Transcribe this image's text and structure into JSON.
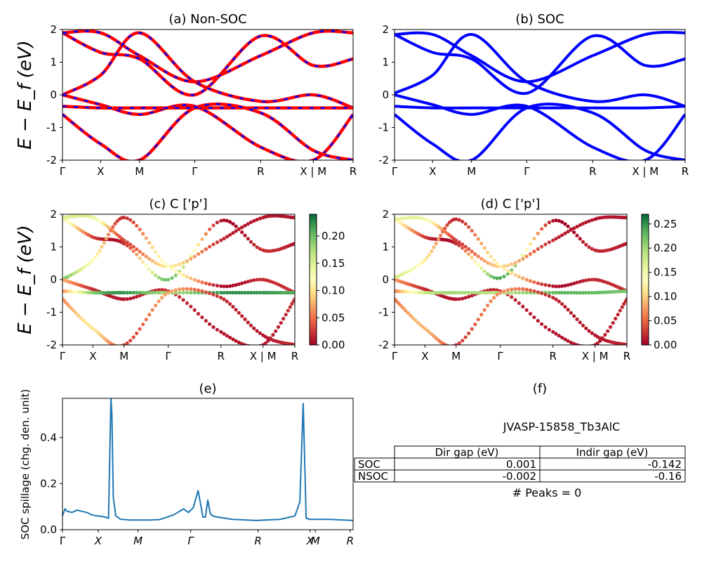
{
  "figure": {
    "panel_titles": {
      "a": "(a) Non-SOC",
      "b": "(b) SOC",
      "c": "(c)  C ['p']",
      "d": "(d) C ['p']",
      "e": "(e)",
      "f": "(f)"
    },
    "ylabel_band": "E − E_f (eV)",
    "ylabel_spillage": "SOC spillage (chg. den. unit)",
    "kpath_labels": [
      "Γ",
      "X",
      "M",
      "Γ",
      "R",
      "X | M",
      "R"
    ],
    "kpath_labels_e": [
      "Γ",
      "X",
      "M",
      "Γ",
      "R",
      "X",
      "M",
      "R"
    ],
    "colorbar_c_ticks": [
      "0.00",
      "0.05",
      "0.10",
      "0.15",
      "0.20"
    ],
    "colorbar_d_ticks": [
      "0.00",
      "0.05",
      "0.10",
      "0.15",
      "0.20",
      "0.25"
    ],
    "colors": {
      "nonsoc_line": "#ff0000",
      "nonsoc_dash": "#0000ff",
      "soc_line": "#0000ff",
      "spillage_line": "#1f77b4",
      "colormap": "RdYlGn"
    }
  },
  "info": {
    "material": "JVASP-15858_Tb3AlC",
    "table": {
      "col_headers": [
        "Dir gap (eV)",
        "Indir gap (eV)"
      ],
      "rows": [
        {
          "label": "SOC",
          "dir": "0.001",
          "indir": "-0.142"
        },
        {
          "label": "NSOC",
          "dir": "-0.002",
          "indir": "-0.16"
        }
      ]
    },
    "peaks": "# Peaks = 0"
  },
  "chart_data": [
    {
      "type": "line",
      "title": "(a) Non-SOC",
      "ylabel": "E − E_f (eV)",
      "ylim": [
        -2,
        2
      ],
      "yticks": [
        -2,
        -1,
        0,
        1,
        2
      ],
      "xticks": [
        "Γ",
        "X",
        "M",
        "Γ",
        "R",
        "X | M",
        "R"
      ],
      "series": [
        {
          "x": [
            0,
            1,
            2,
            3,
            4,
            5,
            6
          ],
          "values": [
            1.9,
            1.3,
            1.1,
            0.0,
            1.8,
            0.9,
            1.1
          ]
        },
        {
          "x": [
            0,
            1,
            2,
            3,
            4,
            5,
            6
          ],
          "values": [
            1.9,
            1.9,
            1.2,
            0.4,
            1.2,
            1.9,
            1.9
          ]
        },
        {
          "x": [
            0,
            1,
            2,
            3,
            4,
            5,
            6
          ],
          "values": [
            0.0,
            0.6,
            1.9,
            0.4,
            -0.2,
            0.0,
            -0.4
          ]
        },
        {
          "x": [
            0,
            1,
            2,
            3,
            4,
            5,
            6
          ],
          "values": [
            0.0,
            -0.3,
            -0.6,
            -0.35,
            -1.6,
            -2.0,
            -0.6
          ]
        },
        {
          "x": [
            0,
            1,
            2,
            3,
            4,
            5,
            6
          ],
          "values": [
            -0.35,
            -0.4,
            -0.4,
            -0.4,
            -0.4,
            -0.4,
            -0.4
          ]
        },
        {
          "x": [
            0,
            1,
            2,
            3,
            4,
            5,
            6
          ],
          "values": [
            -0.6,
            -1.5,
            -2.0,
            -0.4,
            -0.55,
            -1.7,
            -2.0
          ]
        }
      ]
    },
    {
      "type": "line",
      "title": "(b) SOC",
      "ylim": [
        -2,
        2
      ],
      "yticks": [
        -2,
        -1,
        0,
        1,
        2
      ],
      "xticks": [
        "Γ",
        "X",
        "M",
        "Γ",
        "R",
        "X | M",
        "R"
      ],
      "series": [
        {
          "x": [
            0,
            1,
            2,
            3,
            4,
            5,
            6
          ],
          "values": [
            1.85,
            1.3,
            1.1,
            0.05,
            1.8,
            0.9,
            1.1
          ]
        },
        {
          "x": [
            0,
            1,
            2,
            3,
            4,
            5,
            6
          ],
          "values": [
            1.85,
            1.85,
            1.2,
            0.4,
            1.2,
            1.85,
            1.9
          ]
        },
        {
          "x": [
            0,
            1,
            2,
            3,
            4,
            5,
            6
          ],
          "values": [
            0.05,
            0.6,
            1.85,
            0.4,
            -0.2,
            0.0,
            -0.35
          ]
        },
        {
          "x": [
            0,
            1,
            2,
            3,
            4,
            5,
            6
          ],
          "values": [
            0.0,
            -0.3,
            -0.6,
            -0.35,
            -1.6,
            -2.0,
            -0.6
          ]
        },
        {
          "x": [
            0,
            1,
            2,
            3,
            4,
            5,
            6
          ],
          "values": [
            -0.35,
            -0.4,
            -0.4,
            -0.4,
            -0.4,
            -0.4,
            -0.35
          ]
        },
        {
          "x": [
            0,
            1,
            2,
            3,
            4,
            5,
            6
          ],
          "values": [
            -0.6,
            -1.5,
            -2.0,
            -0.4,
            -0.55,
            -1.7,
            -2.0
          ]
        }
      ]
    },
    {
      "type": "scatter",
      "title": "(c)  C ['p']",
      "ylabel": "E − E_f (eV)",
      "ylim": [
        -2,
        2
      ],
      "yticks": [
        -2,
        -1,
        0,
        1,
        2
      ],
      "xticks": [
        "Γ",
        "X",
        "M",
        "Γ",
        "R",
        "X | M",
        "R"
      ],
      "colorbar": {
        "min": 0.0,
        "max": 0.24,
        "ticks": [
          0.0,
          0.05,
          0.1,
          0.15,
          0.2
        ]
      },
      "bands": [
        {
          "x": [
            0,
            1,
            2,
            3,
            4,
            5,
            6
          ],
          "values": [
            1.9,
            1.3,
            1.1,
            0.0,
            1.8,
            0.9,
            1.1
          ],
          "weight": [
            0.15,
            0.03,
            0.02,
            0.2,
            0.01,
            0.02,
            0.01
          ]
        },
        {
          "x": [
            0,
            1,
            2,
            3,
            4,
            5,
            6
          ],
          "values": [
            1.9,
            1.9,
            1.2,
            0.4,
            1.2,
            1.9,
            1.9
          ],
          "weight": [
            0.15,
            0.14,
            0.03,
            0.1,
            0.02,
            0.01,
            0.01
          ]
        },
        {
          "x": [
            0,
            1,
            2,
            3,
            4,
            5,
            6
          ],
          "values": [
            0.0,
            0.6,
            1.9,
            0.4,
            -0.2,
            0.0,
            -0.4
          ],
          "weight": [
            0.2,
            0.12,
            0.02,
            0.12,
            0.01,
            0.02,
            0.02
          ]
        },
        {
          "x": [
            0,
            1,
            2,
            3,
            4,
            5,
            6
          ],
          "values": [
            0.0,
            -0.3,
            -0.6,
            -0.35,
            -1.6,
            -2.0,
            -0.6
          ],
          "weight": [
            0.08,
            0.02,
            0.01,
            0.02,
            0.01,
            0.01,
            0.02
          ]
        },
        {
          "x": [
            0,
            1,
            2,
            3,
            4,
            5,
            6
          ],
          "values": [
            -0.35,
            -0.4,
            -0.4,
            -0.4,
            -0.4,
            -0.4,
            -0.4
          ],
          "weight": [
            0.06,
            0.19,
            0.22,
            0.18,
            0.22,
            0.22,
            0.21
          ]
        },
        {
          "x": [
            0,
            1,
            2,
            3,
            4,
            5,
            6
          ],
          "values": [
            -0.6,
            -1.5,
            -2.0,
            -0.4,
            -0.55,
            -1.7,
            -2.0
          ],
          "weight": [
            0.06,
            0.1,
            0.03,
            0.07,
            0.02,
            0.01,
            0.02
          ]
        }
      ]
    },
    {
      "type": "scatter",
      "title": "(d) C ['p']",
      "ylim": [
        -2,
        2
      ],
      "yticks": [
        -2,
        -1,
        0,
        1,
        2
      ],
      "xticks": [
        "Γ",
        "X",
        "M",
        "Γ",
        "R",
        "X | M",
        "R"
      ],
      "colorbar": {
        "min": 0.0,
        "max": 0.27,
        "ticks": [
          0.0,
          0.05,
          0.1,
          0.15,
          0.2,
          0.25
        ]
      },
      "bands": [
        {
          "x": [
            0,
            1,
            2,
            3,
            4,
            5,
            6
          ],
          "values": [
            1.85,
            1.3,
            1.1,
            0.05,
            1.8,
            0.9,
            1.1
          ],
          "weight": [
            0.15,
            0.03,
            0.02,
            0.24,
            0.01,
            0.02,
            0.01
          ]
        },
        {
          "x": [
            0,
            1,
            2,
            3,
            4,
            5,
            6
          ],
          "values": [
            1.85,
            1.85,
            1.2,
            0.4,
            1.2,
            1.85,
            1.9
          ],
          "weight": [
            0.16,
            0.15,
            0.03,
            0.1,
            0.02,
            0.01,
            0.01
          ]
        },
        {
          "x": [
            0,
            1,
            2,
            3,
            4,
            5,
            6
          ],
          "values": [
            0.05,
            0.6,
            1.85,
            0.4,
            -0.2,
            0.0,
            -0.35
          ],
          "weight": [
            0.18,
            0.12,
            0.02,
            0.12,
            0.01,
            0.02,
            0.02
          ]
        },
        {
          "x": [
            0,
            1,
            2,
            3,
            4,
            5,
            6
          ],
          "values": [
            0.0,
            -0.3,
            -0.6,
            -0.35,
            -1.6,
            -2.0,
            -0.6
          ],
          "weight": [
            0.08,
            0.02,
            0.01,
            0.02,
            0.01,
            0.01,
            0.02
          ]
        },
        {
          "x": [
            0,
            1,
            2,
            3,
            4,
            5,
            6
          ],
          "values": [
            -0.35,
            -0.4,
            -0.4,
            -0.4,
            -0.4,
            -0.4,
            -0.35
          ],
          "weight": [
            0.06,
            0.18,
            0.2,
            0.19,
            0.23,
            0.23,
            0.22
          ]
        },
        {
          "x": [
            0,
            1,
            2,
            3,
            4,
            5,
            6
          ],
          "values": [
            -0.6,
            -1.5,
            -2.0,
            -0.4,
            -0.55,
            -1.7,
            -2.0
          ],
          "weight": [
            0.06,
            0.09,
            0.03,
            0.07,
            0.02,
            0.01,
            0.02
          ]
        }
      ]
    },
    {
      "type": "line",
      "title": "(e)",
      "ylabel": "SOC spillage (chg. den. unit)",
      "ylim": [
        0,
        0.57
      ],
      "yticks": [
        0.0,
        0.2,
        0.4
      ],
      "xticks": [
        "Γ",
        "X",
        "M",
        "Γ",
        "R",
        "X",
        "M",
        "R"
      ],
      "x": [
        0.0,
        0.05,
        0.1,
        0.2,
        0.3,
        0.4,
        0.5,
        0.6,
        0.7,
        0.8,
        0.88,
        0.95,
        1.0,
        1.02,
        1.05,
        1.1,
        1.2,
        1.4,
        1.6,
        1.8,
        2.0,
        2.1,
        2.3,
        2.5,
        2.6,
        2.7,
        2.8,
        2.9,
        2.95,
        3.0,
        3.05,
        3.1,
        3.2,
        3.5,
        4.0,
        4.5,
        4.8,
        4.9,
        4.97,
        5.0,
        5.03,
        5.1,
        5.5,
        6.0
      ],
      "values": [
        0.06,
        0.09,
        0.08,
        0.075,
        0.085,
        0.08,
        0.075,
        0.065,
        0.06,
        0.058,
        0.055,
        0.05,
        0.57,
        0.5,
        0.14,
        0.06,
        0.045,
        0.042,
        0.042,
        0.042,
        0.044,
        0.05,
        0.065,
        0.09,
        0.075,
        0.095,
        0.17,
        0.055,
        0.055,
        0.13,
        0.07,
        0.06,
        0.055,
        0.045,
        0.04,
        0.045,
        0.06,
        0.12,
        0.55,
        0.3,
        0.05,
        0.045,
        0.045,
        0.04
      ]
    }
  ]
}
